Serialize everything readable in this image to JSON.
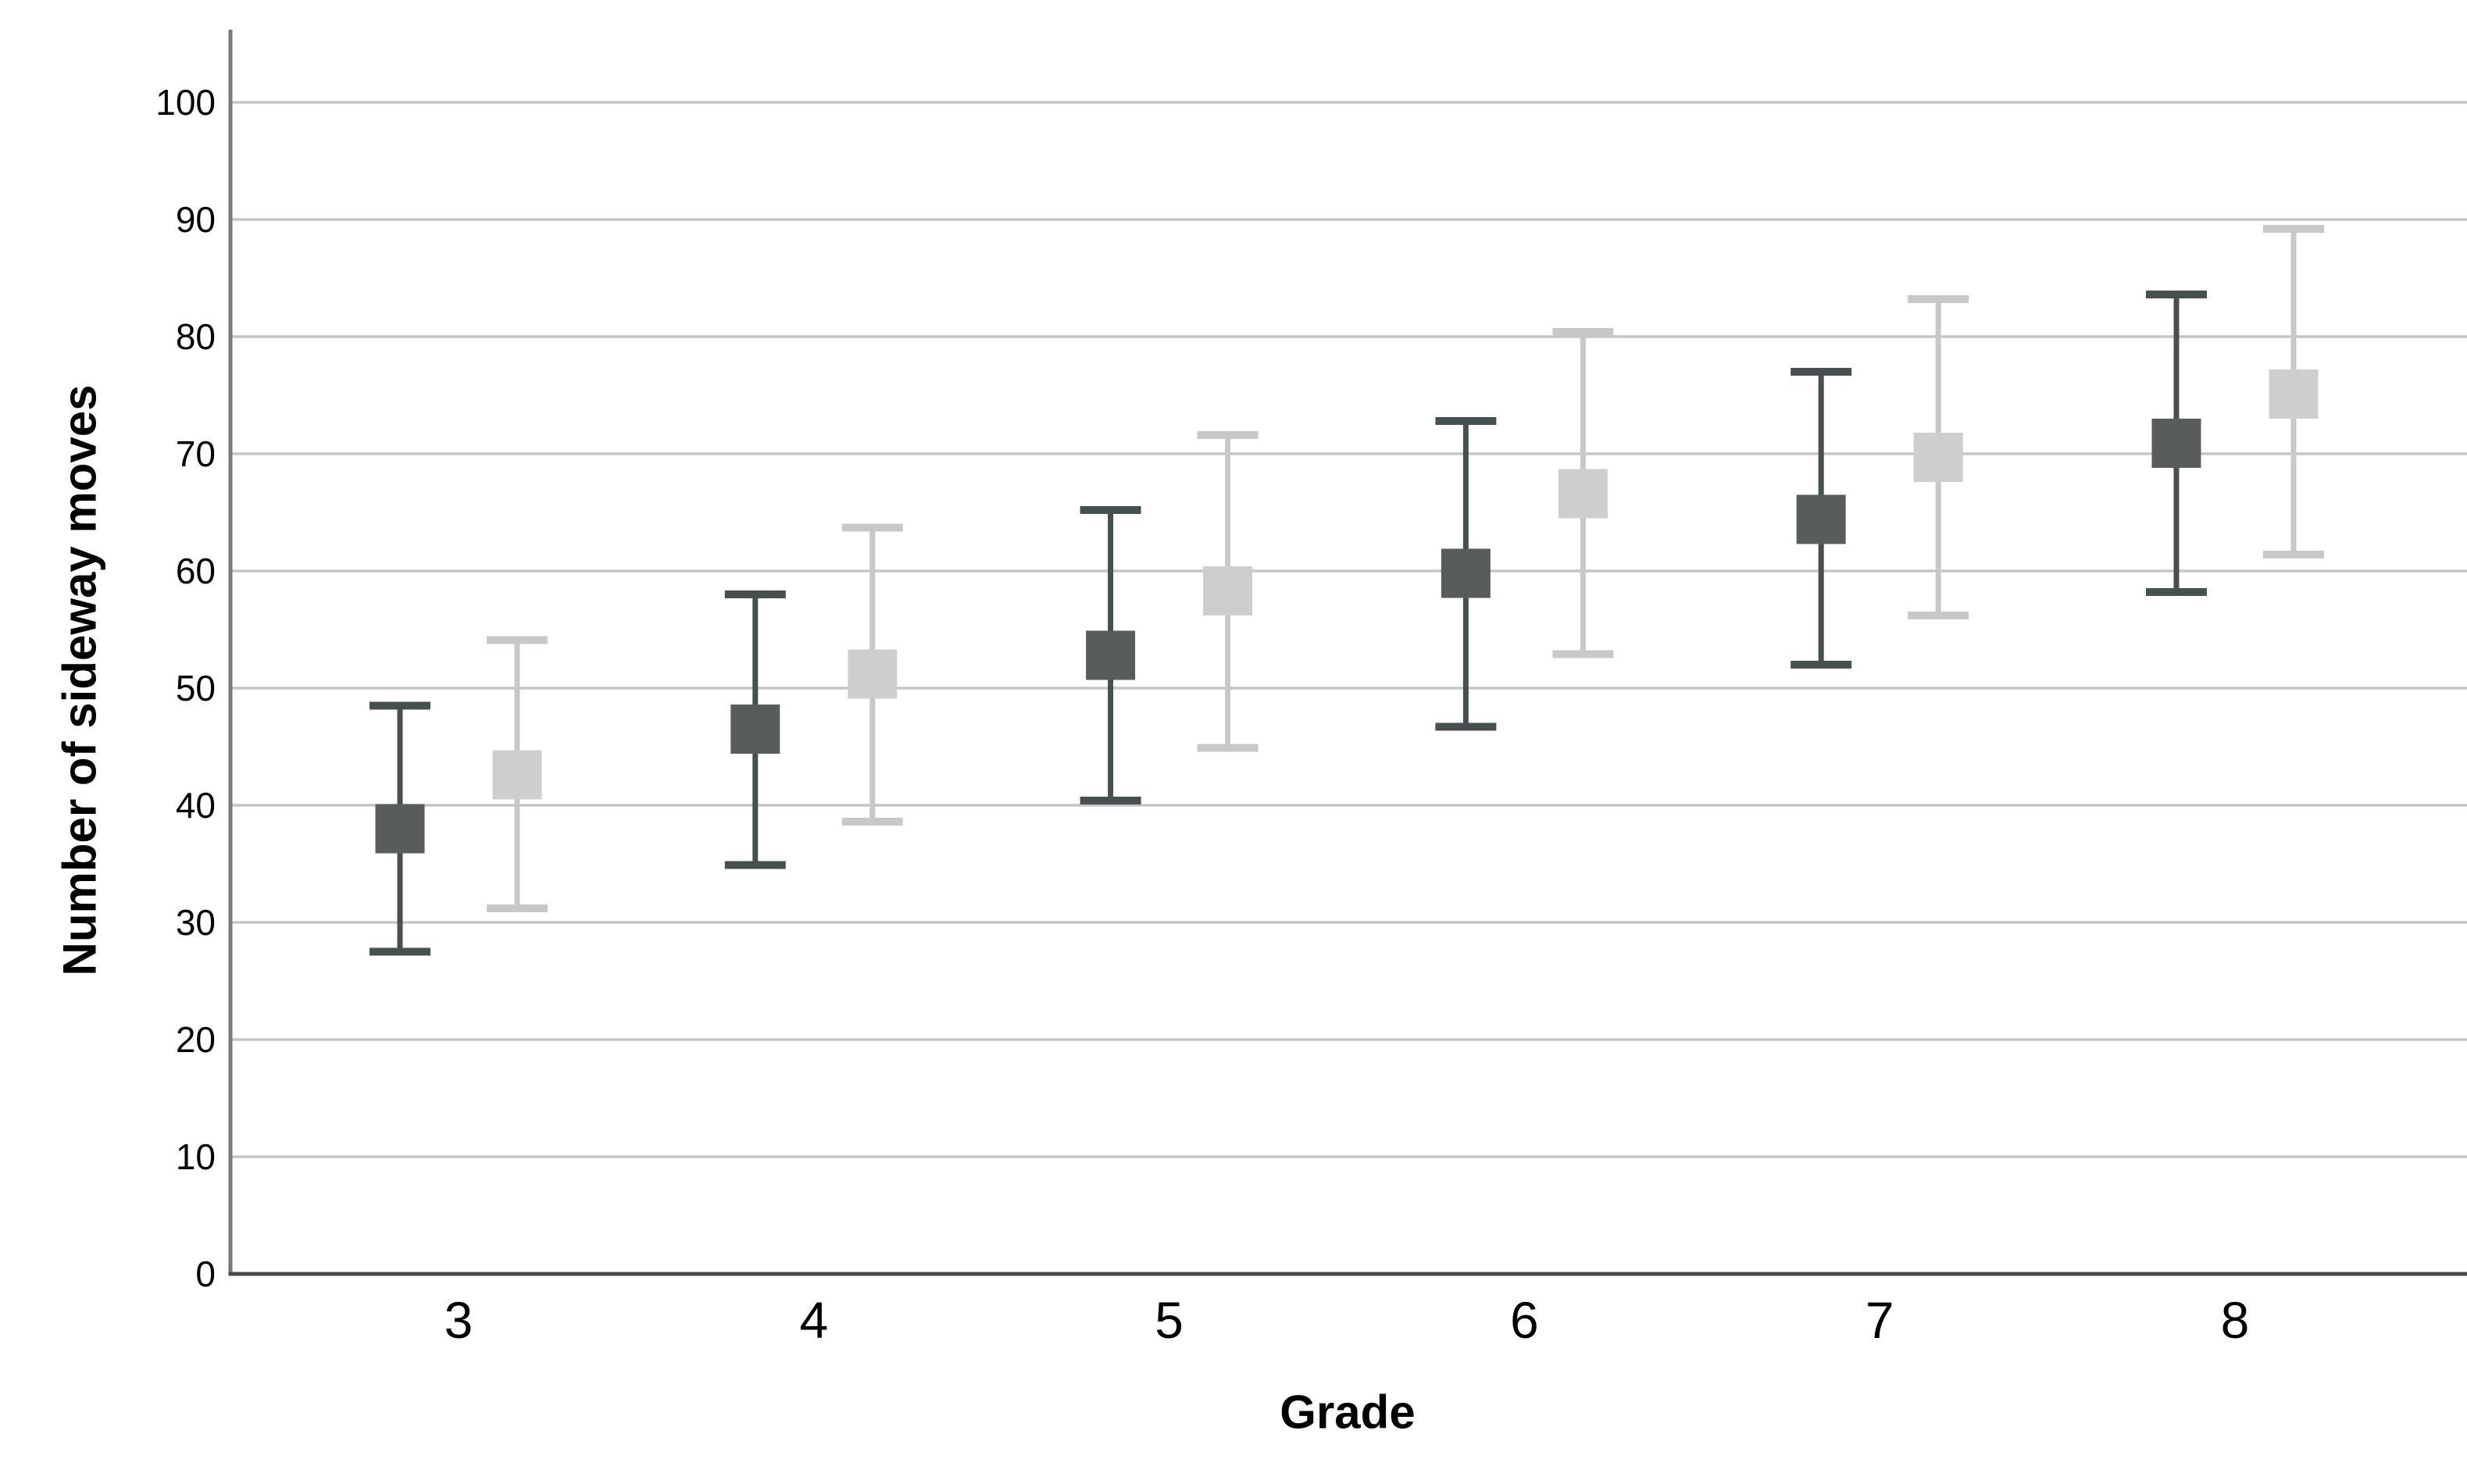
{
  "page": {
    "background_color": "#ffffff"
  },
  "chart_data": {
    "type": "errorbar",
    "title": "",
    "xlabel": "Grade",
    "ylabel": "Number of sideway moves",
    "categories": [
      "3",
      "4",
      "5",
      "6",
      "7",
      "8"
    ],
    "y_ticks": [
      0,
      10,
      20,
      30,
      40,
      50,
      60,
      70,
      80,
      90,
      100
    ],
    "ylim": [
      0,
      106
    ],
    "grid": "horizontal",
    "legend": "none",
    "series": [
      {
        "name": "dark-gray",
        "marker_shape": "square",
        "marker_color": "#585d5c",
        "bar_color": "#46504e",
        "means": [
          38.0,
          46.5,
          52.8,
          59.8,
          64.4,
          70.9
        ],
        "ci_low": [
          27.5,
          34.9,
          40.4,
          46.7,
          52.0,
          58.2
        ],
        "ci_high": [
          48.5,
          58.0,
          65.2,
          72.8,
          77.0,
          83.6
        ]
      },
      {
        "name": "light-gray",
        "marker_shape": "square",
        "marker_color": "#cecece",
        "bar_color": "#c8c8c8",
        "means": [
          42.6,
          51.2,
          58.3,
          66.6,
          69.7,
          75.1
        ],
        "ci_low": [
          31.2,
          38.6,
          44.9,
          52.9,
          56.2,
          61.4
        ],
        "ci_high": [
          54.1,
          63.7,
          71.6,
          80.4,
          83.2,
          89.2
        ]
      }
    ],
    "colors": {
      "gridline": "#c5c5c5",
      "y_axis_line": "#7a7a7a",
      "x_axis_line": "#4a4a4a",
      "text": "#000000"
    }
  }
}
